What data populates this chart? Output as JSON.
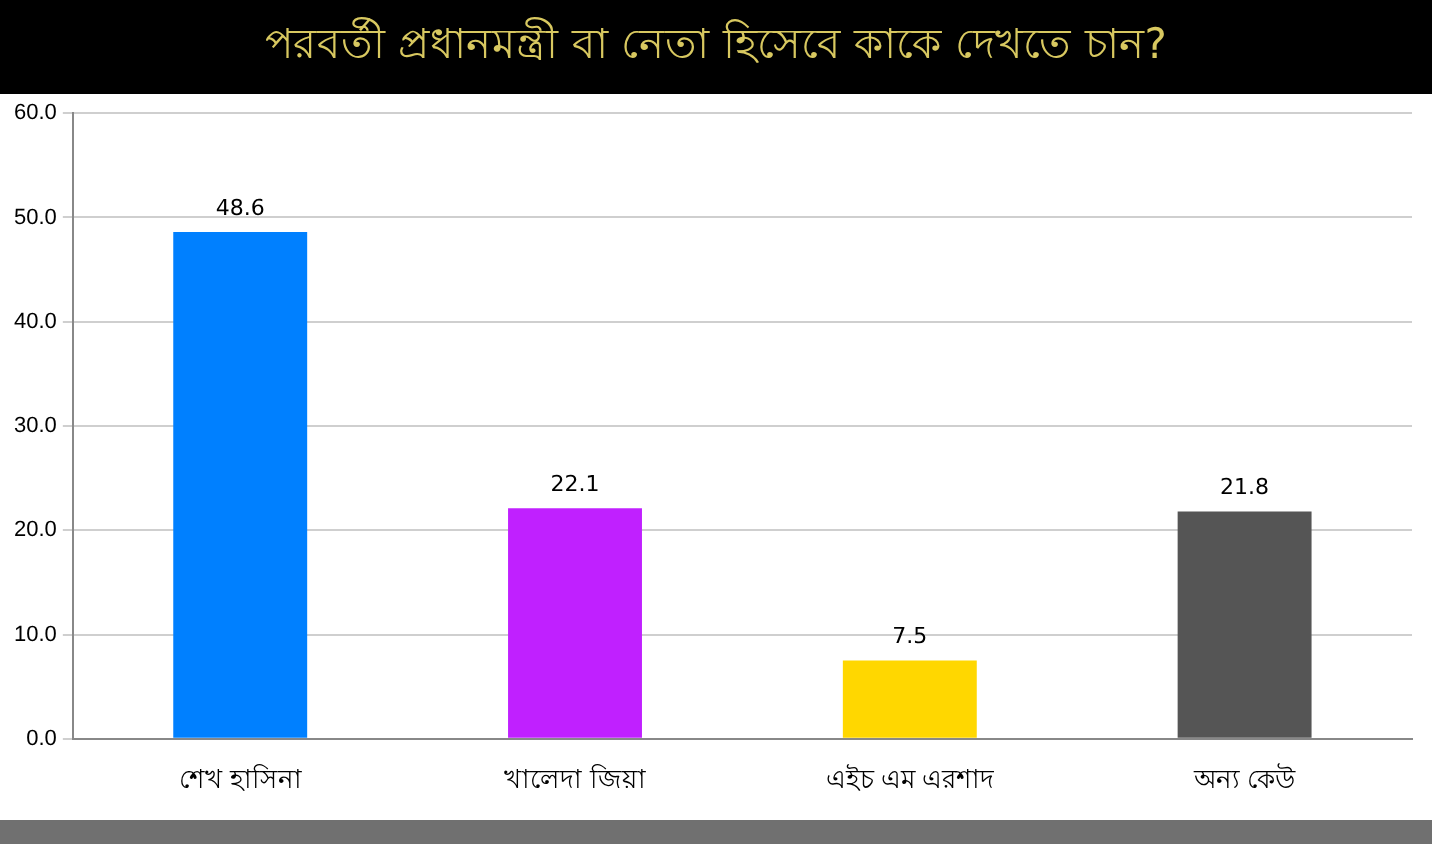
{
  "chart_data": {
    "type": "bar",
    "title": "পরবর্তী প্রধানমন্ত্রী বা নেতা হিসেবে কাকে দেখতে চান?",
    "categories": [
      "শেখ হাসিনা",
      "খালেদা জিয়া",
      "এইচ এম এরশাদ",
      "অন্য কেউ"
    ],
    "values": [
      48.6,
      22.1,
      7.5,
      21.8
    ],
    "colors": [
      "#0080ff",
      "#c020ff",
      "#ffd700",
      "#555555"
    ],
    "ylim": [
      0,
      60
    ],
    "yticks": [
      {
        "value": 0,
        "label": "0.0"
      },
      {
        "value": 10,
        "label": "10.0"
      },
      {
        "value": 20,
        "label": "20.0"
      },
      {
        "value": 30,
        "label": "30.0"
      },
      {
        "value": 40,
        "label": "40.0"
      },
      {
        "value": 50,
        "label": "50.0"
      },
      {
        "value": 60,
        "label": "60.0"
      }
    ],
    "grid": "y",
    "data_labels": true,
    "legend": false
  }
}
